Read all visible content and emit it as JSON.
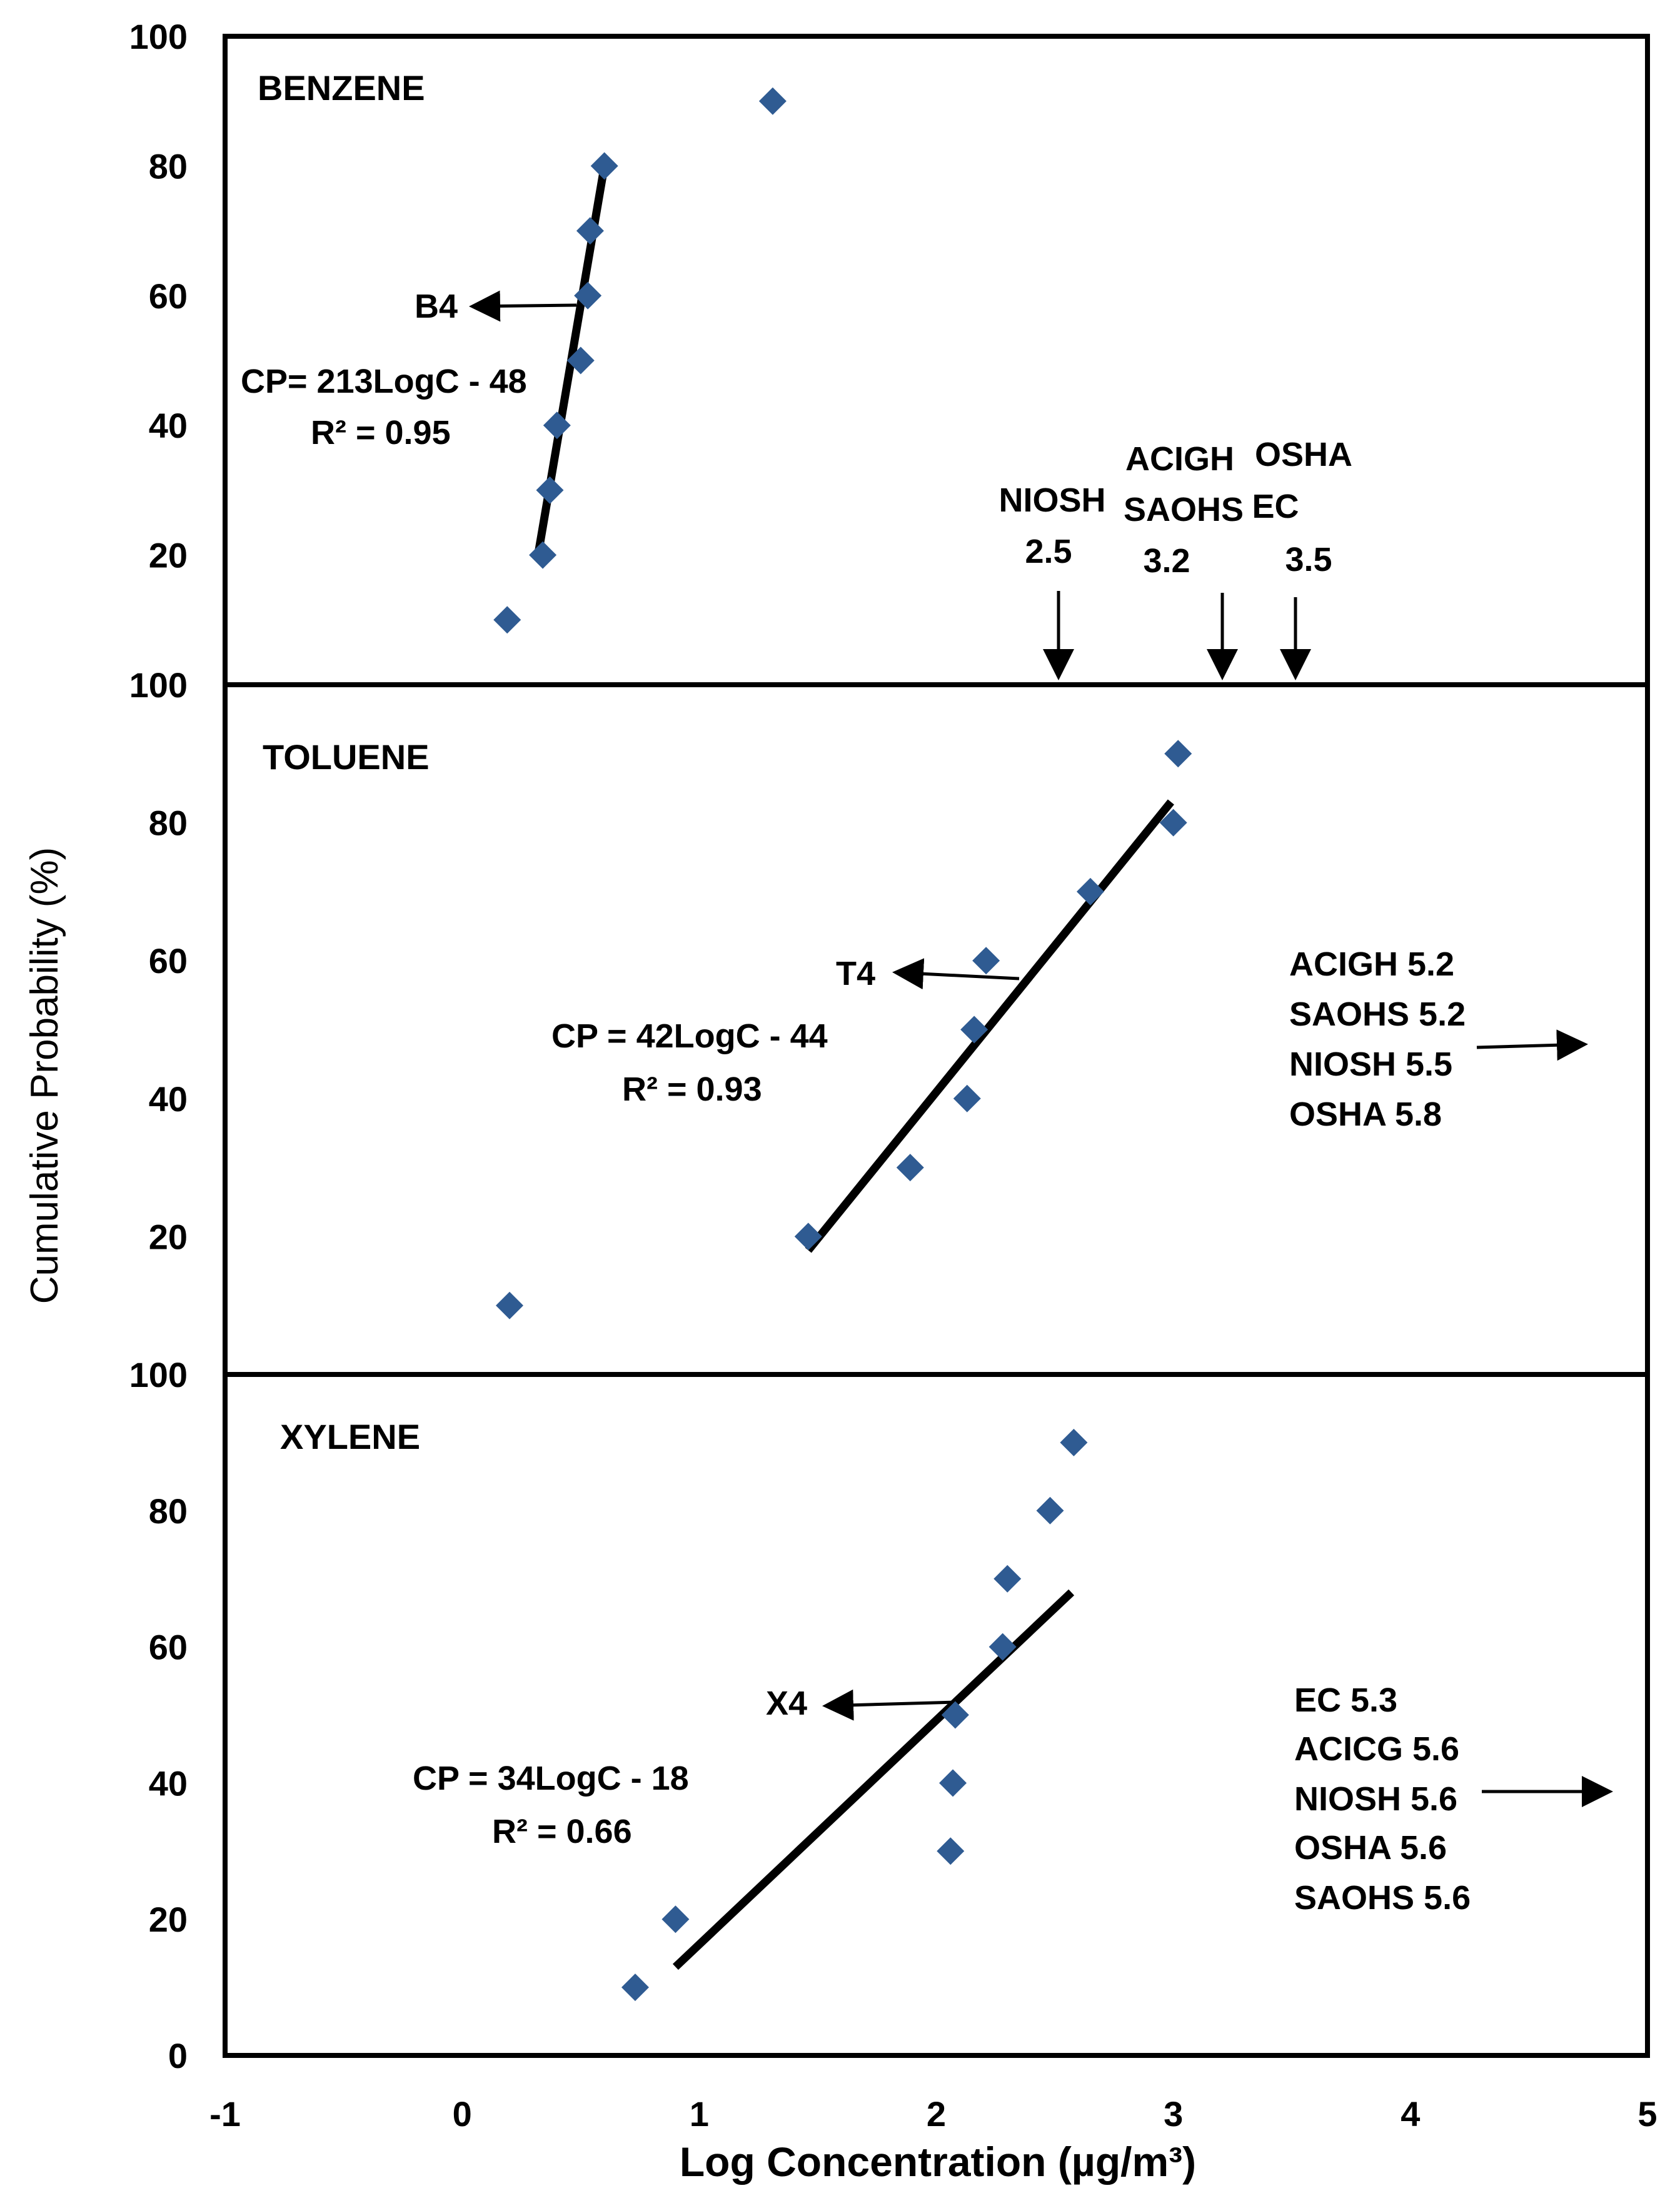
{
  "chart_data": {
    "type": "scatter",
    "ylabel": "Cumulative Probability (%)",
    "xlabel": "Log Concentration (µg/m³)",
    "xlim": [
      -1,
      5
    ],
    "x_ticks": [
      "-1",
      "0",
      "1",
      "2",
      "3",
      "4",
      "5"
    ],
    "marker_color": "#2f5b92",
    "panels": [
      {
        "name": "BENZENE",
        "ylim": [
          0,
          100
        ],
        "y_ticks": [
          "100",
          "80",
          "60",
          "40",
          "20"
        ],
        "points": [
          {
            "x": 0.19,
            "y": 10
          },
          {
            "x": 0.34,
            "y": 20
          },
          {
            "x": 0.37,
            "y": 30
          },
          {
            "x": 0.4,
            "y": 40
          },
          {
            "x": 0.5,
            "y": 50
          },
          {
            "x": 0.53,
            "y": 60
          },
          {
            "x": 0.54,
            "y": 70
          },
          {
            "x": 0.6,
            "y": 80
          },
          {
            "x": 1.31,
            "y": 90
          }
        ],
        "fit_line": {
          "x1": 0.32,
          "y1": 20,
          "x2": 0.6,
          "y2": 80
        },
        "equation": "CP= 213LogC - 48",
        "r2": "R² = 0.95",
        "pointer_label": "B4",
        "limits": [
          {
            "lines": [
              "NIOSH",
              "2.5"
            ]
          },
          {
            "lines": [
              "ACIGH",
              "SAOHS",
              "3.2"
            ]
          },
          {
            "lines": [
              "OSHA",
              "EC",
              "3.5"
            ]
          }
        ]
      },
      {
        "name": "TOLUENE",
        "ylim": [
          0,
          100
        ],
        "y_ticks": [
          "100",
          "80",
          "60",
          "40",
          "20"
        ],
        "points": [
          {
            "x": 0.2,
            "y": 10
          },
          {
            "x": 1.46,
            "y": 20
          },
          {
            "x": 1.89,
            "y": 30
          },
          {
            "x": 2.13,
            "y": 40
          },
          {
            "x": 2.16,
            "y": 50
          },
          {
            "x": 2.21,
            "y": 60
          },
          {
            "x": 2.65,
            "y": 70
          },
          {
            "x": 3.0,
            "y": 80
          },
          {
            "x": 3.02,
            "y": 90
          }
        ],
        "fit_line": {
          "x1": 1.46,
          "y1": 18,
          "x2": 2.99,
          "y2": 83
        },
        "equation": "CP = 42LogC - 44",
        "r2": "R² = 0.93",
        "pointer_label": "T4",
        "limits_text": [
          "ACIGH 5.2",
          "SAOHS 5.2",
          "NIOSH 5.5",
          "OSHA 5.8"
        ]
      },
      {
        "name": "XYLENE",
        "ylim": [
          0,
          100
        ],
        "y_ticks": [
          "100",
          "80",
          "60",
          "40",
          "20",
          "0"
        ],
        "points": [
          {
            "x": 0.73,
            "y": 10
          },
          {
            "x": 0.9,
            "y": 20
          },
          {
            "x": 2.06,
            "y": 30
          },
          {
            "x": 2.07,
            "y": 40
          },
          {
            "x": 2.08,
            "y": 50
          },
          {
            "x": 2.28,
            "y": 60
          },
          {
            "x": 2.3,
            "y": 70
          },
          {
            "x": 2.48,
            "y": 80
          },
          {
            "x": 2.58,
            "y": 90
          }
        ],
        "fit_line": {
          "x1": 0.9,
          "y1": 13,
          "x2": 2.57,
          "y2": 68
        },
        "equation": "CP = 34LogC - 18",
        "r2": "R² = 0.66",
        "pointer_label": "X4",
        "limits_text": [
          "EC 5.3",
          "ACICG 5.6",
          "NIOSH 5.6",
          "OSHA 5.6",
          "SAOHS 5.6"
        ]
      }
    ]
  }
}
